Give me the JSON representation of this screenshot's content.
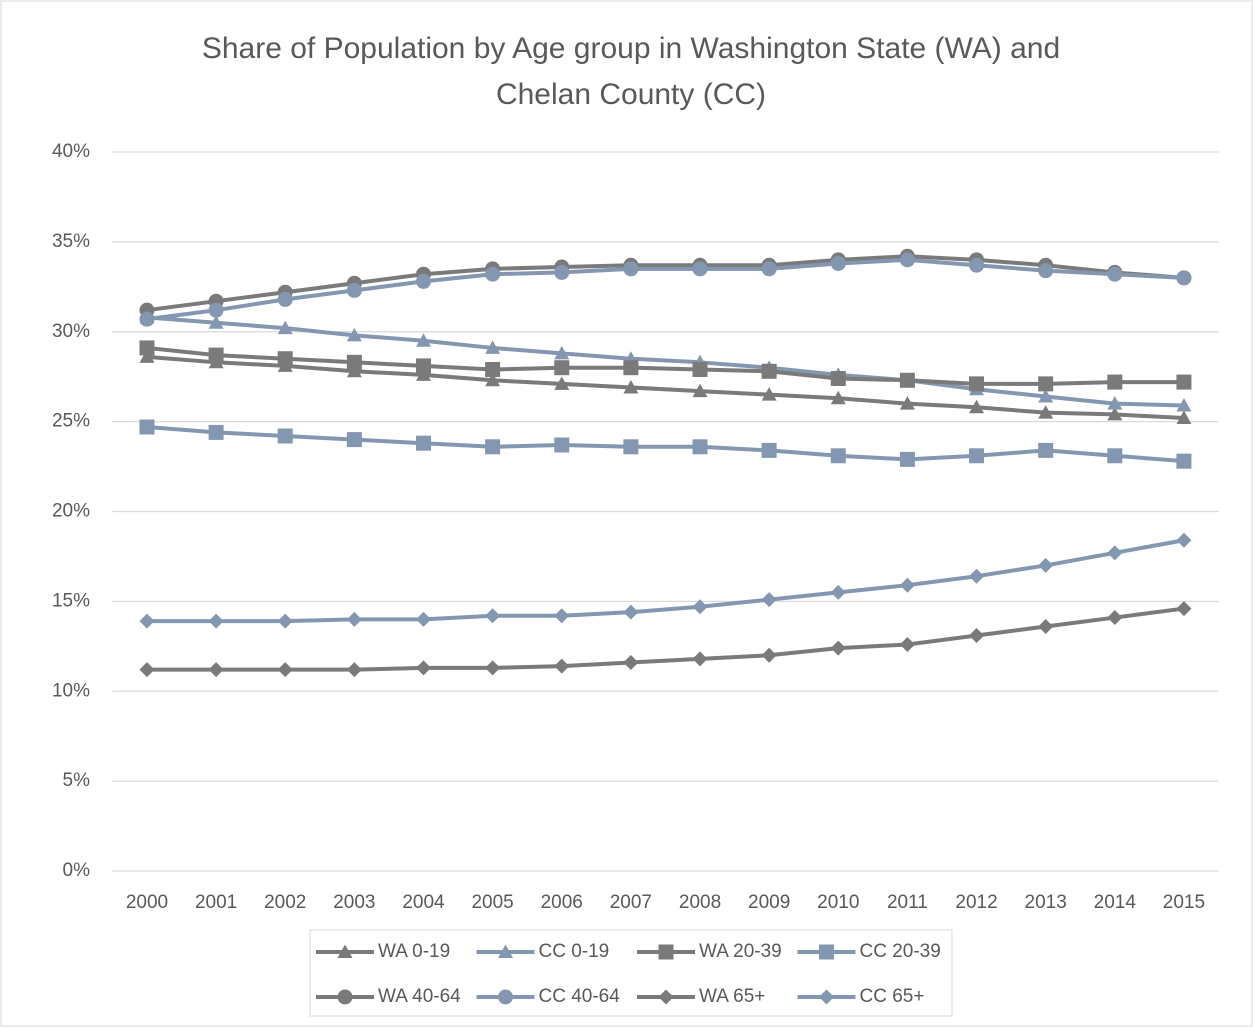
{
  "chart_data": {
    "type": "line",
    "title": [
      "Share of Population by Age group in Washington State (WA) and",
      "Chelan County (CC)"
    ],
    "categories": [
      "2000",
      "2001",
      "2002",
      "2003",
      "2004",
      "2005",
      "2006",
      "2007",
      "2008",
      "2009",
      "2010",
      "2011",
      "2012",
      "2013",
      "2014",
      "2015"
    ],
    "ylim": [
      0,
      40
    ],
    "yticks": [
      {
        "value": 0,
        "label": "0%"
      },
      {
        "value": 5,
        "label": "5%"
      },
      {
        "value": 10,
        "label": "10%"
      },
      {
        "value": 15,
        "label": "15%"
      },
      {
        "value": 20,
        "label": "20%"
      },
      {
        "value": 25,
        "label": "25%"
      },
      {
        "value": 30,
        "label": "30%"
      },
      {
        "value": 35,
        "label": "35%"
      },
      {
        "value": 40,
        "label": "40%"
      }
    ],
    "grid": true,
    "legend": "bottom",
    "series": [
      {
        "name": "WA 0-19",
        "color": "#7a7a7a",
        "marker": "triangle",
        "values": [
          28.6,
          28.3,
          28.1,
          27.8,
          27.6,
          27.3,
          27.1,
          26.9,
          26.7,
          26.5,
          26.3,
          26.0,
          25.8,
          25.5,
          25.4,
          25.2
        ]
      },
      {
        "name": "CC 0-19",
        "color": "#8497b0",
        "marker": "triangle",
        "values": [
          30.8,
          30.5,
          30.2,
          29.8,
          29.5,
          29.1,
          28.8,
          28.5,
          28.3,
          28.0,
          27.6,
          27.3,
          26.8,
          26.4,
          26.0,
          25.9
        ]
      },
      {
        "name": "WA 20-39",
        "color": "#7a7a7a",
        "marker": "square",
        "values": [
          29.1,
          28.7,
          28.5,
          28.3,
          28.1,
          27.9,
          28.0,
          28.0,
          27.9,
          27.8,
          27.4,
          27.3,
          27.1,
          27.1,
          27.2,
          27.2
        ]
      },
      {
        "name": "CC 20-39",
        "color": "#8497b0",
        "marker": "square",
        "values": [
          24.7,
          24.4,
          24.2,
          24.0,
          23.8,
          23.6,
          23.7,
          23.6,
          23.6,
          23.4,
          23.1,
          22.9,
          23.1,
          23.4,
          23.1,
          22.8
        ]
      },
      {
        "name": "WA 40-64",
        "color": "#7a7a7a",
        "marker": "circle",
        "values": [
          31.2,
          31.7,
          32.2,
          32.7,
          33.2,
          33.5,
          33.6,
          33.7,
          33.7,
          33.7,
          34.0,
          34.2,
          34.0,
          33.7,
          33.3,
          33.0
        ]
      },
      {
        "name": "CC 40-64",
        "color": "#8497b0",
        "marker": "circle",
        "values": [
          30.7,
          31.2,
          31.8,
          32.3,
          32.8,
          33.2,
          33.3,
          33.5,
          33.5,
          33.5,
          33.8,
          34.0,
          33.7,
          33.4,
          33.2,
          33.0
        ]
      },
      {
        "name": "WA 65+",
        "color": "#7a7a7a",
        "marker": "diamond",
        "values": [
          11.2,
          11.2,
          11.2,
          11.2,
          11.3,
          11.3,
          11.4,
          11.6,
          11.8,
          12.0,
          12.4,
          12.6,
          13.1,
          13.6,
          14.1,
          14.6
        ]
      },
      {
        "name": "CC 65+",
        "color": "#8497b0",
        "marker": "diamond",
        "values": [
          13.9,
          13.9,
          13.9,
          14.0,
          14.0,
          14.2,
          14.2,
          14.4,
          14.7,
          15.1,
          15.5,
          15.9,
          16.4,
          17.0,
          17.7,
          18.4
        ]
      }
    ]
  }
}
